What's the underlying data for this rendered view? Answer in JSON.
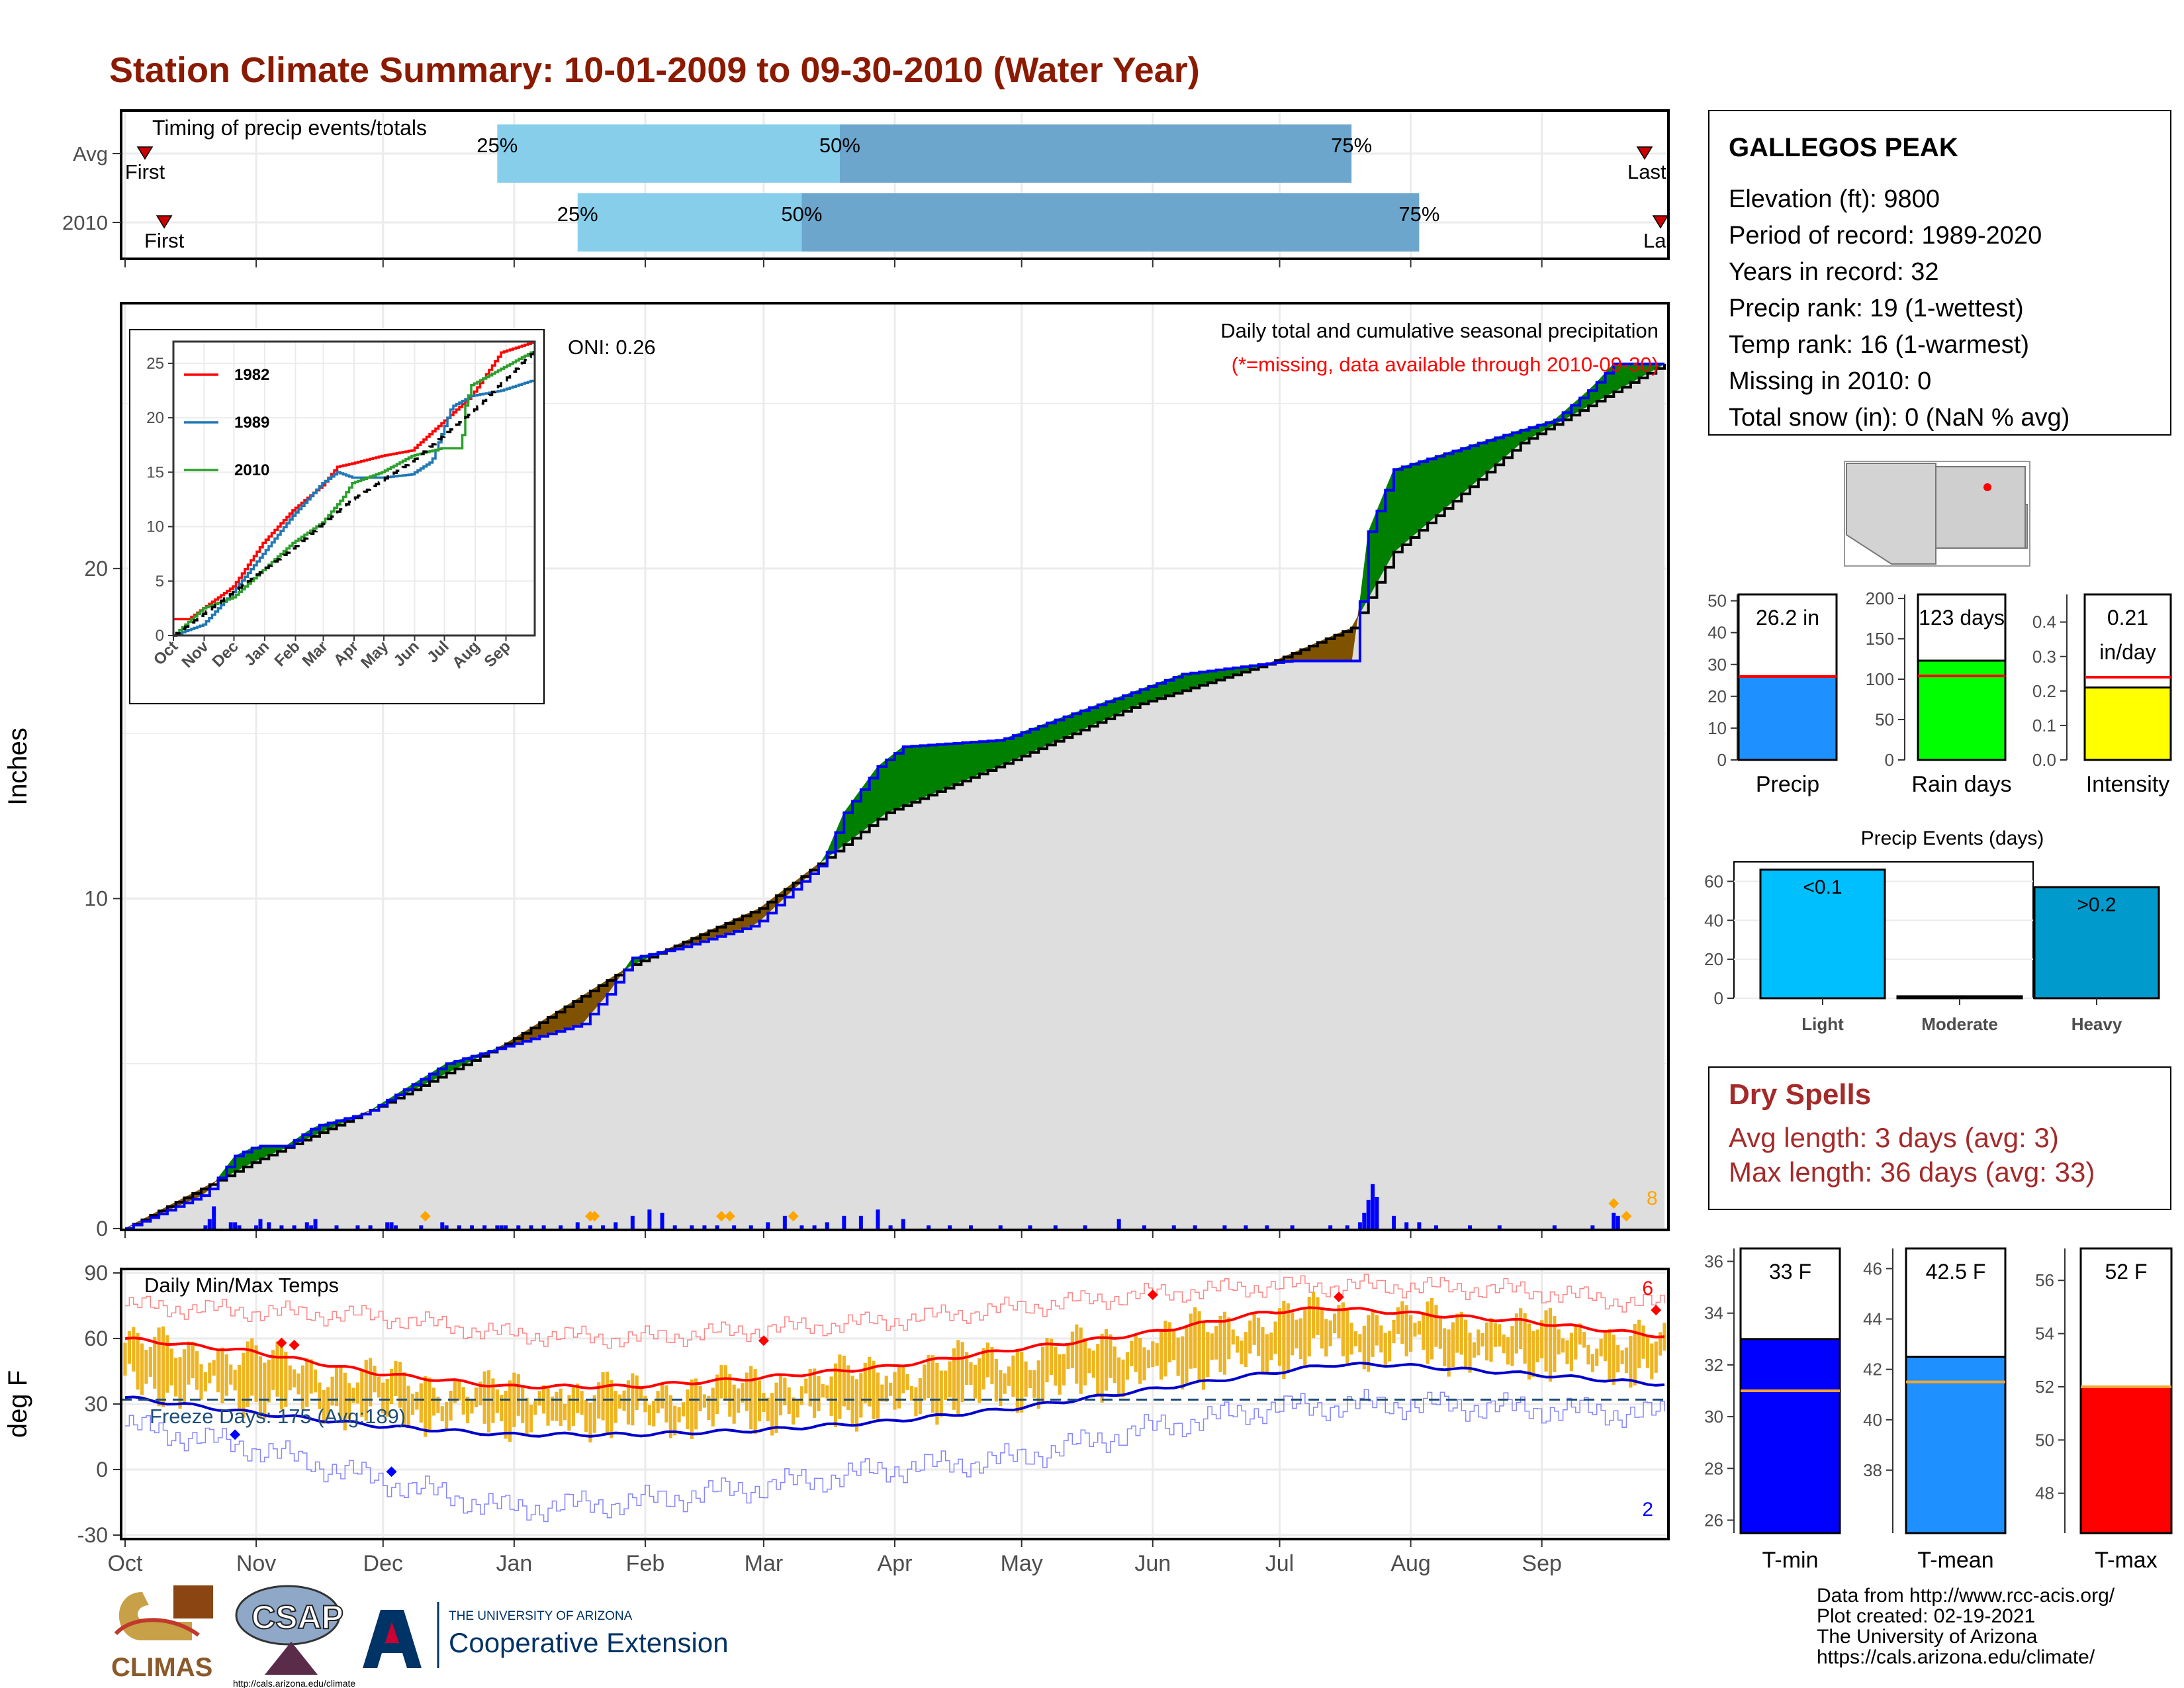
{
  "title": "Station Climate Summary: 10-01-2009 to 09-30-2010 (Water Year)",
  "colors": {
    "title": "#8B1A00",
    "light_blue": "#87CEEB",
    "steel_blue": "#6CA6CD",
    "green": "#008000",
    "brown": "#7F5200",
    "gray_fill": "#DEDEDE",
    "blue_line": "#0000FF",
    "orange_marker": "#FFA500",
    "red": "#FF0000",
    "gold_bars": "#EEB422",
    "dry_red": "#A52A2A"
  },
  "chart_data": [
    {
      "id": "timing",
      "type": "bar",
      "title": "Timing of precip events/totals",
      "rows": [
        {
          "label": "Avg",
          "first_label": "First",
          "last_label": "Last",
          "first_date": "2009-10-01",
          "last_date": "2010-09-30",
          "p25": "2009-12-28",
          "p50": "2010-03-19",
          "p75": "2010-07-18",
          "p25_label": "25%",
          "p50_label": "50%",
          "p75_label": "75%"
        },
        {
          "label": "2010",
          "first_label": "First",
          "last_label": "La",
          "first_date": "2009-10-04",
          "last_date": "2010-09-30",
          "p25": "2010-01-16",
          "p50": "2010-03-10",
          "p75": "2010-08-03",
          "p25_label": "25%",
          "p50_label": "50%",
          "p75_label": "75%"
        }
      ]
    },
    {
      "id": "precip",
      "type": "area",
      "ylabel": "Inches",
      "ylim": [
        0,
        28
      ],
      "yticks": [
        0,
        10,
        20
      ],
      "annotation_title": "Daily total and cumulative seasonal precipitation",
      "annotation_missing": "(*=missing, data available through 2010-09-30)",
      "oni_label": "ONI: 0.26",
      "snow_count_label": "8",
      "cumulative_2010": [
        [
          0,
          0
        ],
        [
          18,
          1.0
        ],
        [
          20,
          1.2
        ],
        [
          26,
          2.2
        ],
        [
          31,
          2.5
        ],
        [
          38,
          2.5
        ],
        [
          45,
          3.1
        ],
        [
          57,
          3.5
        ],
        [
          76,
          5.0
        ],
        [
          84,
          5.3
        ],
        [
          108,
          6.2
        ],
        [
          114,
          7.1
        ],
        [
          120,
          8.2
        ],
        [
          131,
          8.5
        ],
        [
          149,
          9.2
        ],
        [
          159,
          10.4
        ],
        [
          165,
          11.1
        ],
        [
          170,
          12.6
        ],
        [
          178,
          14.0
        ],
        [
          184,
          14.6
        ],
        [
          207,
          14.8
        ],
        [
          224,
          15.6
        ],
        [
          235,
          16.1
        ],
        [
          250,
          16.8
        ],
        [
          275,
          17.2
        ],
        [
          290,
          17.2
        ],
        [
          292,
          19.0
        ],
        [
          293,
          20.8
        ],
        [
          300,
          23.0
        ],
        [
          325,
          24.0
        ],
        [
          338,
          24.5
        ],
        [
          347,
          25.5
        ],
        [
          352,
          26.2
        ],
        [
          364,
          26.2
        ]
      ],
      "cumulative_avg": [
        [
          0,
          0
        ],
        [
          30,
          2.0
        ],
        [
          60,
          3.7
        ],
        [
          90,
          5.6
        ],
        [
          120,
          8.0
        ],
        [
          150,
          9.7
        ],
        [
          180,
          12.6
        ],
        [
          210,
          14.2
        ],
        [
          240,
          15.9
        ],
        [
          270,
          17.1
        ],
        [
          290,
          18.2
        ],
        [
          300,
          20.5
        ],
        [
          330,
          23.8
        ],
        [
          364,
          26.2
        ]
      ],
      "daily_days": [
        19,
        20,
        21,
        25,
        26,
        27,
        31,
        32,
        34,
        37,
        40,
        43,
        44,
        45,
        50,
        55,
        58,
        62,
        63,
        64,
        70,
        75,
        76,
        79,
        82,
        85,
        88,
        89,
        90,
        93,
        96,
        99,
        103,
        107,
        110,
        113,
        116,
        120,
        124,
        127,
        130,
        134,
        137,
        140,
        144,
        148,
        152,
        156,
        160,
        163,
        166,
        170,
        174,
        178,
        181,
        184,
        190,
        195,
        200,
        207,
        214,
        220,
        227,
        235,
        241,
        248,
        253,
        260,
        265,
        270,
        276,
        285,
        289,
        292,
        293,
        294,
        295,
        296,
        300,
        303,
        306,
        310,
        318,
        325,
        338,
        347,
        352,
        353
      ],
      "daily_values": [
        0.1,
        0.3,
        0.7,
        0.2,
        0.2,
        0.1,
        0.1,
        0.3,
        0.2,
        0.1,
        0.1,
        0.2,
        0.1,
        0.3,
        0.1,
        0.1,
        0.1,
        0.2,
        0.2,
        0.1,
        0.1,
        0.2,
        0.1,
        0.1,
        0.1,
        0.1,
        0.1,
        0.1,
        0.1,
        0.1,
        0.1,
        0.1,
        0.1,
        0.2,
        0.1,
        0.1,
        0.2,
        0.4,
        0.6,
        0.5,
        0.1,
        0.1,
        0.1,
        0.1,
        0.1,
        0.1,
        0.2,
        0.4,
        0.1,
        0.1,
        0.2,
        0.4,
        0.4,
        0.6,
        0.1,
        0.3,
        0.1,
        0.1,
        0.1,
        0.1,
        0.1,
        0.1,
        0.1,
        0.3,
        0.1,
        0.1,
        0.1,
        0.1,
        0.1,
        0.1,
        0.1,
        0.1,
        0.1,
        0.2,
        0.5,
        0.9,
        1.4,
        1.0,
        0.4,
        0.2,
        0.2,
        0.1,
        0.1,
        0.1,
        0.1,
        0.1,
        0.5,
        0.4
      ],
      "snow_days": [
        71,
        110,
        111,
        141,
        143,
        158,
        352,
        355
      ]
    },
    {
      "id": "inset",
      "type": "line",
      "xlabels": [
        "Oct",
        "Nov",
        "Dec",
        "Jan",
        "Feb",
        "Mar",
        "Apr",
        "May",
        "Jun",
        "Jul",
        "Aug",
        "Sep"
      ],
      "yticks": [
        0,
        5,
        10,
        15,
        20,
        25
      ],
      "ylim": [
        0,
        27
      ],
      "series": [
        {
          "name": "1982",
          "color": "#FF0000",
          "values": [
            [
              0,
              1.5
            ],
            [
              15,
              1.5
            ],
            [
              30,
              2.5
            ],
            [
              60,
              4.5
            ],
            [
              90,
              8.5
            ],
            [
              120,
              11.5
            ],
            [
              150,
              13.8
            ],
            [
              165,
              15.5
            ],
            [
              180,
              15.8
            ],
            [
              210,
              16.5
            ],
            [
              240,
              17.0
            ],
            [
              270,
              19.5
            ],
            [
              300,
              22.0
            ],
            [
              330,
              26.0
            ],
            [
              364,
              27.0
            ]
          ]
        },
        {
          "name": "1989",
          "color": "#1F77B4",
          "values": [
            [
              0,
              0
            ],
            [
              30,
              1.0
            ],
            [
              60,
              4.0
            ],
            [
              90,
              7.5
            ],
            [
              120,
              11.0
            ],
            [
              150,
              14.0
            ],
            [
              165,
              15.0
            ],
            [
              180,
              14.5
            ],
            [
              210,
              14.5
            ],
            [
              240,
              14.8
            ],
            [
              260,
              16.0
            ],
            [
              280,
              21.0
            ],
            [
              300,
              22.0
            ],
            [
              330,
              22.5
            ],
            [
              364,
              23.5
            ]
          ]
        },
        {
          "name": "2010",
          "color": "#2CA02C",
          "values": [
            [
              0,
              0
            ],
            [
              30,
              2.5
            ],
            [
              60,
              3.5
            ],
            [
              90,
              6.0
            ],
            [
              120,
              8.5
            ],
            [
              150,
              10.4
            ],
            [
              170,
              12.6
            ],
            [
              180,
              14.0
            ],
            [
              210,
              15.0
            ],
            [
              240,
              16.5
            ],
            [
              270,
              17.2
            ],
            [
              290,
              17.2
            ],
            [
              293,
              20.8
            ],
            [
              300,
              23.0
            ],
            [
              330,
              24.5
            ],
            [
              364,
              26.2
            ]
          ]
        },
        {
          "name": "",
          "color": "#000000",
          "dashed": true,
          "values": [
            [
              0,
              0
            ],
            [
              60,
              4.0
            ],
            [
              120,
              8.0
            ],
            [
              180,
              12.5
            ],
            [
              240,
              16.0
            ],
            [
              300,
              20.5
            ],
            [
              364,
              26.2
            ]
          ]
        }
      ]
    },
    {
      "id": "temps",
      "type": "line",
      "title": "Daily Min/Max Temps",
      "ylabel": "deg F",
      "ylim": [
        -30,
        90
      ],
      "yticks": [
        90,
        60,
        30,
        0,
        -30
      ],
      "xlabels": [
        "Oct",
        "Nov",
        "Dec",
        "Jan",
        "Feb",
        "Mar",
        "Apr",
        "May",
        "Jun",
        "Jul",
        "Aug",
        "Sep"
      ],
      "freeze_label": "Freeze Days: 175 (Avg:189)",
      "freeze_line": 32,
      "max_record_count": "6",
      "min_record_count": "2",
      "avg_max": [
        [
          0,
          60
        ],
        [
          30,
          54
        ],
        [
          60,
          44
        ],
        [
          90,
          38
        ],
        [
          120,
          38
        ],
        [
          150,
          42
        ],
        [
          180,
          47
        ],
        [
          210,
          55
        ],
        [
          240,
          62
        ],
        [
          270,
          72
        ],
        [
          285,
          74
        ],
        [
          300,
          72
        ],
        [
          330,
          68
        ],
        [
          364,
          61
        ]
      ],
      "avg_min": [
        [
          0,
          33
        ],
        [
          30,
          26
        ],
        [
          60,
          20
        ],
        [
          90,
          16
        ],
        [
          120,
          16
        ],
        [
          150,
          18
        ],
        [
          180,
          22
        ],
        [
          210,
          28
        ],
        [
          240,
          36
        ],
        [
          270,
          44
        ],
        [
          285,
          48
        ],
        [
          300,
          48
        ],
        [
          330,
          44
        ],
        [
          364,
          39
        ]
      ],
      "record_max": [
        [
          0,
          75
        ],
        [
          60,
          70
        ],
        [
          90,
          62
        ],
        [
          120,
          60
        ],
        [
          150,
          64
        ],
        [
          180,
          68
        ],
        [
          210,
          74
        ],
        [
          240,
          80
        ],
        [
          270,
          84
        ],
        [
          300,
          84
        ],
        [
          330,
          82
        ],
        [
          364,
          75
        ]
      ],
      "record_min": [
        [
          0,
          20
        ],
        [
          30,
          10
        ],
        [
          60,
          -5
        ],
        [
          90,
          -18
        ],
        [
          120,
          -15
        ],
        [
          150,
          -8
        ],
        [
          180,
          0
        ],
        [
          210,
          5
        ],
        [
          240,
          18
        ],
        [
          270,
          28
        ],
        [
          300,
          30
        ],
        [
          330,
          28
        ],
        [
          364,
          25
        ]
      ],
      "obs_max_red": [
        [
          37,
          58
        ],
        [
          40,
          57
        ],
        [
          151,
          59
        ],
        [
          243,
          80
        ],
        [
          287,
          79
        ],
        [
          362,
          73
        ]
      ],
      "obs_min_blue": [
        [
          26,
          16
        ],
        [
          63,
          -1
        ]
      ]
    },
    {
      "id": "totals",
      "type": "bar",
      "panels": [
        {
          "label": "Precip",
          "value_text": "26.2 in",
          "value": 26.2,
          "avg": 26.2,
          "ylim": [
            0,
            52
          ],
          "yticks": [
            0,
            10,
            20,
            30,
            40,
            50
          ],
          "color": "#1E90FF"
        },
        {
          "label": "Rain days",
          "value_text": "123 days",
          "value": 123,
          "avg": 104,
          "ylim": [
            0,
            205
          ],
          "yticks": [
            0,
            50,
            100,
            150,
            200
          ],
          "color": "#00FF00"
        },
        {
          "label": "Intensity",
          "value_text": "0.21",
          "value_text2": "in/day",
          "value": 0.21,
          "avg": 0.24,
          "ylim": [
            0,
            0.48
          ],
          "yticks": [
            "0.0",
            "0.1",
            "0.2",
            "0.3",
            "0.4"
          ],
          "color": "#FFFF00"
        }
      ]
    },
    {
      "id": "events",
      "type": "bar",
      "title": "Precip Events (days)",
      "categories": [
        "Light",
        "Moderate",
        "Heavy"
      ],
      "values": [
        66,
        0,
        57
      ],
      "bar_labels": [
        "<0.1",
        "",
        ">0.2"
      ],
      "colors": [
        "#00BFFF",
        "#00BFFF",
        "#009ACD"
      ],
      "ylim": [
        0,
        70
      ],
      "yticks": [
        0,
        20,
        40,
        60
      ]
    },
    {
      "id": "temp_bars",
      "type": "bar",
      "panels": [
        {
          "label": "T-min",
          "value_text": "33 F",
          "value": 33,
          "avg": 31,
          "ylim": [
            25.5,
            36.5
          ],
          "yticks": [
            26,
            28,
            30,
            32,
            34,
            36
          ],
          "color": "#0000FF"
        },
        {
          "label": "T-mean",
          "value_text": "42.5 F",
          "value": 42.5,
          "avg": 41.5,
          "ylim": [
            35.5,
            46.8
          ],
          "yticks": [
            38,
            40,
            42,
            44,
            46
          ],
          "color": "#1E90FF"
        },
        {
          "label": "T-max",
          "value_text": "52 F",
          "value": 52,
          "avg": 52,
          "ylim": [
            46.5,
            57.2
          ],
          "yticks": [
            48,
            50,
            52,
            54,
            56
          ],
          "color": "#FF0000"
        }
      ]
    }
  ],
  "station": {
    "name": "GALLEGOS PEAK",
    "lines": [
      "Elevation (ft): 9800",
      "Period of record: 1989-2020",
      "Years in record: 32",
      "Precip rank: 19 (1-wettest)",
      "Temp rank: 16 (1-warmest)",
      "Missing in 2010: 0",
      "Total snow (in): 0 (NaN % avg)"
    ]
  },
  "dry_spells": {
    "title": "Dry Spells",
    "avg_line": "Avg length: 3 days (avg: 3)",
    "max_line": "Max length: 36 days (avg: 33)"
  },
  "footer": {
    "lines": [
      "Data from http://www.rcc-acis.org/",
      "Plot created: 02-19-2021",
      "The University of Arizona",
      "https://cals.arizona.edu/climate/"
    ],
    "logo_climas": "CLIMAS",
    "logo_csap": "CSAP",
    "logo_csap_url": "http://cals.arizona.edu/climate",
    "uofa_small": "THE UNIVERSITY OF ARIZONA",
    "uofa_big": "Cooperative Extension"
  }
}
